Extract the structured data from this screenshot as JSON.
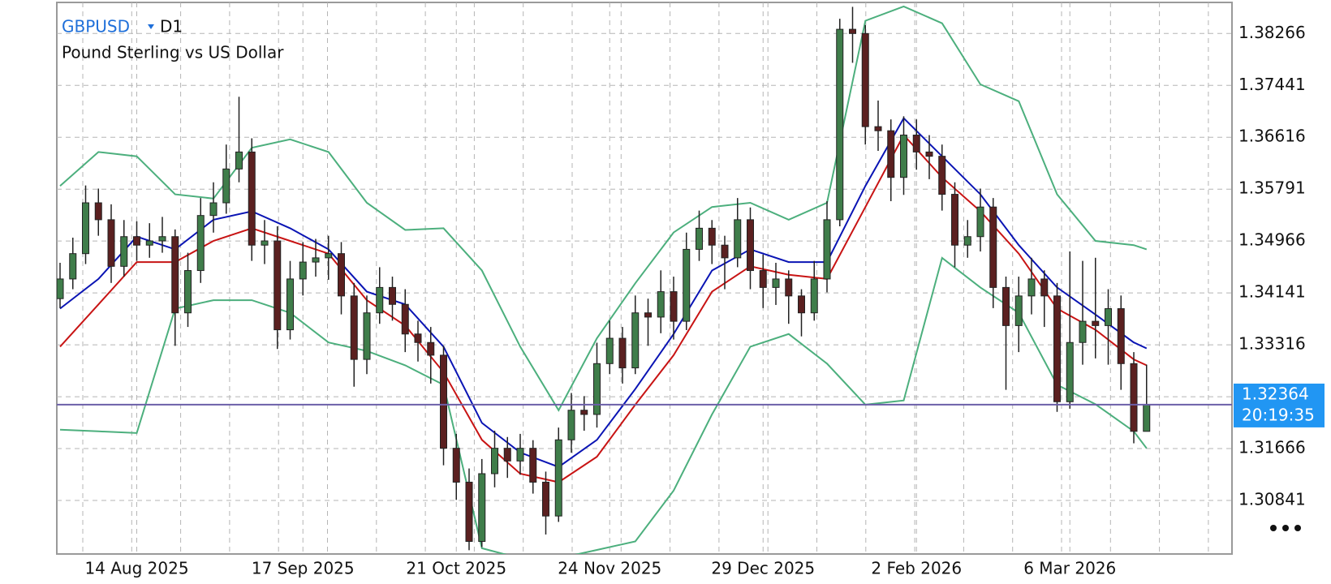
{
  "header": {
    "symbol": "GBPUSD",
    "timeframe": "D1",
    "description": "Pound Sterling vs US Dollar"
  },
  "chart_data": {
    "type": "candlestick",
    "categories": [
      null,
      null,
      null,
      null,
      null,
      null,
      "14 Aug 2025",
      null,
      null,
      null,
      null,
      null,
      null,
      null,
      null,
      null,
      null,
      null,
      null,
      "17 Sep 2025",
      null,
      null,
      null,
      null,
      null,
      null,
      null,
      null,
      null,
      null,
      null,
      "21 Oct 2025",
      null,
      null,
      null,
      null,
      null,
      null,
      null,
      null,
      null,
      null,
      null,
      "24 Nov 2025",
      null,
      null,
      null,
      null,
      null,
      null,
      null,
      null,
      null,
      null,
      null,
      "29 Dec 2025",
      null,
      null,
      null,
      null,
      null,
      null,
      null,
      null,
      null,
      null,
      null,
      "2 Feb 2026",
      null,
      null,
      null,
      null,
      null,
      null,
      null,
      null,
      null,
      null,
      null,
      "6 Mar 2026",
      null,
      null,
      null,
      null,
      null,
      null
    ],
    "candles": [
      [
        1.3405,
        1.3462,
        1.339,
        1.34363
      ],
      [
        1.34363,
        1.3502,
        1.342,
        1.34766
      ],
      [
        1.34766,
        1.3585,
        1.346,
        1.35574
      ],
      [
        1.35574,
        1.358,
        1.3505,
        1.35305
      ],
      [
        1.35305,
        1.3555,
        1.343,
        1.34564
      ],
      [
        1.34564,
        1.353,
        1.344,
        1.35036
      ],
      [
        1.35036,
        1.3528,
        1.3465,
        1.34901
      ],
      [
        1.34901,
        1.3525,
        1.347,
        1.34968
      ],
      [
        1.34968,
        1.3535,
        1.3478,
        1.35036
      ],
      [
        1.35036,
        1.3515,
        1.333,
        1.33824
      ],
      [
        1.33824,
        1.3478,
        1.336,
        1.34497
      ],
      [
        1.34497,
        1.3565,
        1.343,
        1.35372
      ],
      [
        1.35372,
        1.359,
        1.351,
        1.35574
      ],
      [
        1.35574,
        1.365,
        1.354,
        1.36112
      ],
      [
        1.36112,
        1.3726,
        1.359,
        1.36382
      ],
      [
        1.36382,
        1.366,
        1.3465,
        1.34901
      ],
      [
        1.34901,
        1.353,
        1.346,
        1.34968
      ],
      [
        1.34968,
        1.352,
        1.3325,
        1.33555
      ],
      [
        1.33555,
        1.3465,
        1.334,
        1.34363
      ],
      [
        1.34363,
        1.3495,
        1.341,
        1.34632
      ],
      [
        1.34632,
        1.35,
        1.344,
        1.34699
      ],
      [
        1.34699,
        1.3505,
        1.3435,
        1.34766
      ],
      [
        1.34766,
        1.3495,
        1.338,
        1.34093
      ],
      [
        1.34093,
        1.343,
        1.3265,
        1.33084
      ],
      [
        1.33084,
        1.341,
        1.3285,
        1.33824
      ],
      [
        1.33824,
        1.3455,
        1.3365,
        1.34228
      ],
      [
        1.34228,
        1.344,
        1.337,
        1.33959
      ],
      [
        1.33959,
        1.342,
        1.332,
        1.33488
      ],
      [
        1.33488,
        1.337,
        1.3305,
        1.33353
      ],
      [
        1.33353,
        1.336,
        1.327,
        1.33151
      ],
      [
        1.33151,
        1.333,
        1.314,
        1.31671
      ],
      [
        1.31671,
        1.319,
        1.3085,
        1.31132
      ],
      [
        1.31132,
        1.3135,
        1.3005,
        1.3019
      ],
      [
        1.3019,
        1.315,
        1.301,
        1.31267
      ],
      [
        1.31267,
        1.3195,
        1.3105,
        1.31671
      ],
      [
        1.31671,
        1.3185,
        1.312,
        1.31469
      ],
      [
        1.31469,
        1.319,
        1.3125,
        1.31671
      ],
      [
        1.31671,
        1.318,
        1.3095,
        1.31132
      ],
      [
        1.31132,
        1.313,
        1.303,
        1.30594
      ],
      [
        1.30594,
        1.32,
        1.305,
        1.31805
      ],
      [
        1.31805,
        1.3255,
        1.316,
        1.32276
      ],
      [
        1.32276,
        1.325,
        1.3195,
        1.32209
      ],
      [
        1.32209,
        1.3335,
        1.32,
        1.33017
      ],
      [
        1.33017,
        1.337,
        1.3285,
        1.3342
      ],
      [
        1.3342,
        1.336,
        1.327,
        1.32949
      ],
      [
        1.32949,
        1.341,
        1.3285,
        1.33824
      ],
      [
        1.33824,
        1.3405,
        1.333,
        1.33757
      ],
      [
        1.33757,
        1.345,
        1.335,
        1.34161
      ],
      [
        1.34161,
        1.344,
        1.334,
        1.3369
      ],
      [
        1.3369,
        1.351,
        1.3355,
        1.34834
      ],
      [
        1.34834,
        1.3545,
        1.3465,
        1.3517
      ],
      [
        1.3517,
        1.353,
        1.346,
        1.34901
      ],
      [
        1.34901,
        1.3505,
        1.342,
        1.34699
      ],
      [
        1.34699,
        1.3565,
        1.3455,
        1.35305
      ],
      [
        1.35305,
        1.355,
        1.342,
        1.34497
      ],
      [
        1.34497,
        1.3475,
        1.339,
        1.34228
      ],
      [
        1.34228,
        1.3462,
        1.3395,
        1.34363
      ],
      [
        1.34363,
        1.345,
        1.3365,
        1.34093
      ],
      [
        1.34093,
        1.342,
        1.3345,
        1.33824
      ],
      [
        1.33824,
        1.3465,
        1.337,
        1.34363
      ],
      [
        1.34363,
        1.356,
        1.3415,
        1.35305
      ],
      [
        1.35305,
        1.385,
        1.352,
        1.38333
      ],
      [
        1.38333,
        1.3869,
        1.378,
        1.38266
      ],
      [
        1.38266,
        1.384,
        1.365,
        1.36785
      ],
      [
        1.36785,
        1.372,
        1.364,
        1.3672
      ],
      [
        1.3672,
        1.369,
        1.356,
        1.35978
      ],
      [
        1.35978,
        1.3695,
        1.357,
        1.36651
      ],
      [
        1.36651,
        1.369,
        1.361,
        1.36382
      ],
      [
        1.36382,
        1.3665,
        1.3595,
        1.36314
      ],
      [
        1.36314,
        1.365,
        1.3545,
        1.35709
      ],
      [
        1.35709,
        1.359,
        1.3455,
        1.34901
      ],
      [
        1.34901,
        1.353,
        1.347,
        1.35036
      ],
      [
        1.35036,
        1.358,
        1.348,
        1.35507
      ],
      [
        1.35507,
        1.3565,
        1.339,
        1.34228
      ],
      [
        1.34228,
        1.344,
        1.326,
        1.33622
      ],
      [
        1.33622,
        1.344,
        1.332,
        1.34093
      ],
      [
        1.34093,
        1.347,
        1.338,
        1.34363
      ],
      [
        1.34363,
        1.345,
        1.336,
        1.34093
      ],
      [
        1.34093,
        1.343,
        1.3225,
        1.32411
      ],
      [
        1.32411,
        1.348,
        1.323,
        1.33353
      ],
      [
        1.33353,
        1.3465,
        1.33,
        1.3369
      ],
      [
        1.3369,
        1.347,
        1.331,
        1.33622
      ],
      [
        1.33622,
        1.342,
        1.33,
        1.33891
      ],
      [
        1.33891,
        1.341,
        1.326,
        1.33017
      ],
      [
        1.33017,
        1.332,
        1.3175,
        1.3194
      ],
      [
        1.3194,
        1.33,
        1.32,
        1.32364
      ]
    ],
    "up_color": "#3f7d4a",
    "down_color": "#5b2020",
    "wick_color": "#222222",
    "ylim": [
      1.2999,
      1.3876
    ],
    "yticks": [
      1.30841,
      1.31666,
      1.32491,
      1.33316,
      1.34141,
      1.34966,
      1.35791,
      1.36616,
      1.37441,
      1.38266
    ],
    "grid": true,
    "indicators": {
      "x": [
        0,
        3,
        6,
        9,
        12,
        15,
        18,
        21,
        24,
        27,
        30,
        33,
        36,
        39,
        42,
        45,
        48,
        51,
        54,
        57,
        60,
        63,
        66,
        69,
        72,
        75,
        78,
        81,
        84,
        85
      ],
      "lines": [
        {
          "color": "#4caf7d",
          "values": [
            1.35843,
            1.36382,
            1.36314,
            1.35709,
            1.35641,
            1.36449,
            1.36583,
            1.36382,
            1.35574,
            1.35143,
            1.3517,
            1.34497,
            1.33286,
            1.32276,
            1.3342,
            1.34295,
            1.35103,
            1.35507,
            1.35574,
            1.35305,
            1.35574,
            1.38468,
            1.38697,
            1.38428,
            1.37458,
            1.37189,
            1.35709,
            1.34968,
            1.34901,
            1.34834
          ]
        },
        {
          "color": "#4caf7d",
          "values": [
            1.31967,
            1.3194,
            1.31913,
            1.33891,
            1.34026,
            1.34026,
            1.33824,
            1.33353,
            1.33218,
            1.3299,
            1.3268,
            1.30082,
            1.29921,
            1.29921,
            1.30055,
            1.3019,
            1.30998,
            1.32209,
            1.33286,
            1.33488,
            1.33017,
            1.32364,
            1.32431,
            1.34699,
            1.34228,
            1.33824,
            1.3268,
            1.32371,
            1.3194,
            1.31671
          ]
        },
        {
          "color": "#0a14b4",
          "values": [
            1.33891,
            1.34363,
            1.35036,
            1.34834,
            1.35305,
            1.35439,
            1.3517,
            1.34834,
            1.34161,
            1.33959,
            1.33286,
            1.32074,
            1.31603,
            1.31374,
            1.31805,
            1.32613,
            1.33488,
            1.34497,
            1.34834,
            1.34632,
            1.34632,
            1.35843,
            1.3692,
            1.36314,
            1.35709,
            1.34901,
            1.34228,
            1.33797,
            1.33353,
            1.33259
          ]
        },
        {
          "color": "#c81414",
          "values": [
            1.33286,
            1.33959,
            1.34632,
            1.34632,
            1.34968,
            1.3517,
            1.34968,
            1.34766,
            1.34026,
            1.33622,
            1.32882,
            1.31805,
            1.31267,
            1.31132,
            1.31536,
            1.32364,
            1.33151,
            1.34161,
            1.34564,
            1.3443,
            1.34363,
            1.35507,
            1.36651,
            1.35978,
            1.35439,
            1.34766,
            1.33891,
            1.33555,
            1.33084,
            1.3299
          ]
        }
      ]
    },
    "current_price": {
      "value": 1.32364,
      "time": "20:19:35",
      "color": "#2196f3",
      "line_color": "#6b5fa8"
    }
  }
}
